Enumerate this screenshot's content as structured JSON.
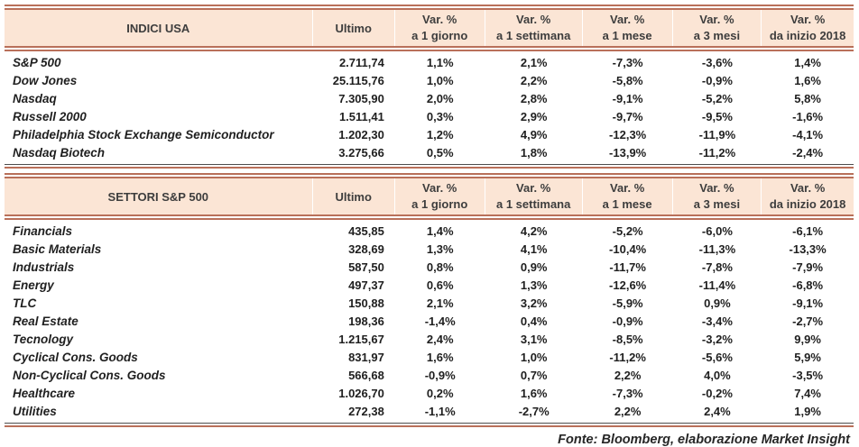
{
  "colors": {
    "border_salmon": "#b9705a",
    "header_background": "#fbe5d5",
    "bottom_dark_line": "#4d4d4d",
    "text": "#1f1f1f"
  },
  "footer": "Fonte: Bloomberg, elaborazione Market Insight",
  "tables": [
    {
      "title": "INDICI USA",
      "headers": {
        "ultimo": "Ultimo",
        "vars": [
          {
            "top": "Var. %",
            "bottom": "a 1 giorno"
          },
          {
            "top": "Var. %",
            "bottom": "a 1 settimana"
          },
          {
            "top": "Var. %",
            "bottom": "a 1 mese"
          },
          {
            "top": "Var. %",
            "bottom": "a 3 mesi"
          },
          {
            "top": "Var. %",
            "bottom": "da inizio 2018"
          }
        ]
      },
      "rows": [
        {
          "name": "S&P 500",
          "ultimo": "2.711,74",
          "vars": [
            "1,1%",
            "2,1%",
            "-7,3%",
            "-3,6%",
            "1,4%"
          ]
        },
        {
          "name": "Dow Jones",
          "ultimo": "25.115,76",
          "vars": [
            "1,0%",
            "2,2%",
            "-5,8%",
            "-0,9%",
            "1,6%"
          ]
        },
        {
          "name": "Nasdaq",
          "ultimo": "7.305,90",
          "vars": [
            "2,0%",
            "2,8%",
            "-9,1%",
            "-5,2%",
            "5,8%"
          ]
        },
        {
          "name": "Russell 2000",
          "ultimo": "1.511,41",
          "vars": [
            "0,3%",
            "2,9%",
            "-9,7%",
            "-9,5%",
            "-1,6%"
          ]
        },
        {
          "name": "Philadelphia Stock Exchange Semiconductor",
          "ultimo": "1.202,30",
          "vars": [
            "1,2%",
            "4,9%",
            "-12,3%",
            "-11,9%",
            "-4,1%"
          ]
        },
        {
          "name": "Nasdaq Biotech",
          "ultimo": "3.275,66",
          "vars": [
            "0,5%",
            "1,8%",
            "-13,9%",
            "-11,2%",
            "-2,4%"
          ]
        }
      ]
    },
    {
      "title": "SETTORI S&P 500",
      "headers": {
        "ultimo": "Ultimo",
        "vars": [
          {
            "top": "Var. %",
            "bottom": "a 1 giorno"
          },
          {
            "top": "Var. %",
            "bottom": "a 1 settimana"
          },
          {
            "top": "Var. %",
            "bottom": "a 1 mese"
          },
          {
            "top": "Var. %",
            "bottom": "a 3 mesi"
          },
          {
            "top": "Var. %",
            "bottom": "da inizio 2018"
          }
        ]
      },
      "rows": [
        {
          "name": "Financials",
          "ultimo": "435,85",
          "vars": [
            "1,4%",
            "4,2%",
            "-5,2%",
            "-6,0%",
            "-6,1%"
          ]
        },
        {
          "name": "Basic Materials",
          "ultimo": "328,69",
          "vars": [
            "1,3%",
            "4,1%",
            "-10,4%",
            "-11,3%",
            "-13,3%"
          ]
        },
        {
          "name": "Industrials",
          "ultimo": "587,50",
          "vars": [
            "0,8%",
            "0,9%",
            "-11,7%",
            "-7,8%",
            "-7,9%"
          ]
        },
        {
          "name": "Energy",
          "ultimo": "497,37",
          "vars": [
            "0,6%",
            "1,3%",
            "-12,6%",
            "-11,4%",
            "-6,8%"
          ]
        },
        {
          "name": "TLC",
          "ultimo": "150,88",
          "vars": [
            "2,1%",
            "3,2%",
            "-5,9%",
            "0,9%",
            "-9,1%"
          ]
        },
        {
          "name": "Real Estate",
          "ultimo": "198,36",
          "vars": [
            "-1,4%",
            "0,4%",
            "-0,9%",
            "-3,4%",
            "-2,7%"
          ]
        },
        {
          "name": "Tecnology",
          "ultimo": "1.215,67",
          "vars": [
            "2,4%",
            "3,1%",
            "-8,5%",
            "-3,2%",
            "9,9%"
          ]
        },
        {
          "name": "Cyclical Cons. Goods",
          "ultimo": "831,97",
          "vars": [
            "1,6%",
            "1,0%",
            "-11,2%",
            "-5,6%",
            "5,9%"
          ]
        },
        {
          "name": "Non-Cyclical Cons. Goods",
          "ultimo": "566,68",
          "vars": [
            "-0,9%",
            "0,7%",
            "2,2%",
            "4,0%",
            "-3,5%"
          ]
        },
        {
          "name": "Healthcare",
          "ultimo": "1.026,70",
          "vars": [
            "0,2%",
            "1,6%",
            "-7,3%",
            "-0,2%",
            "7,4%"
          ]
        },
        {
          "name": "Utilities",
          "ultimo": "272,38",
          "vars": [
            "-1,1%",
            "-2,7%",
            "2,2%",
            "2,4%",
            "1,9%"
          ]
        }
      ]
    }
  ]
}
